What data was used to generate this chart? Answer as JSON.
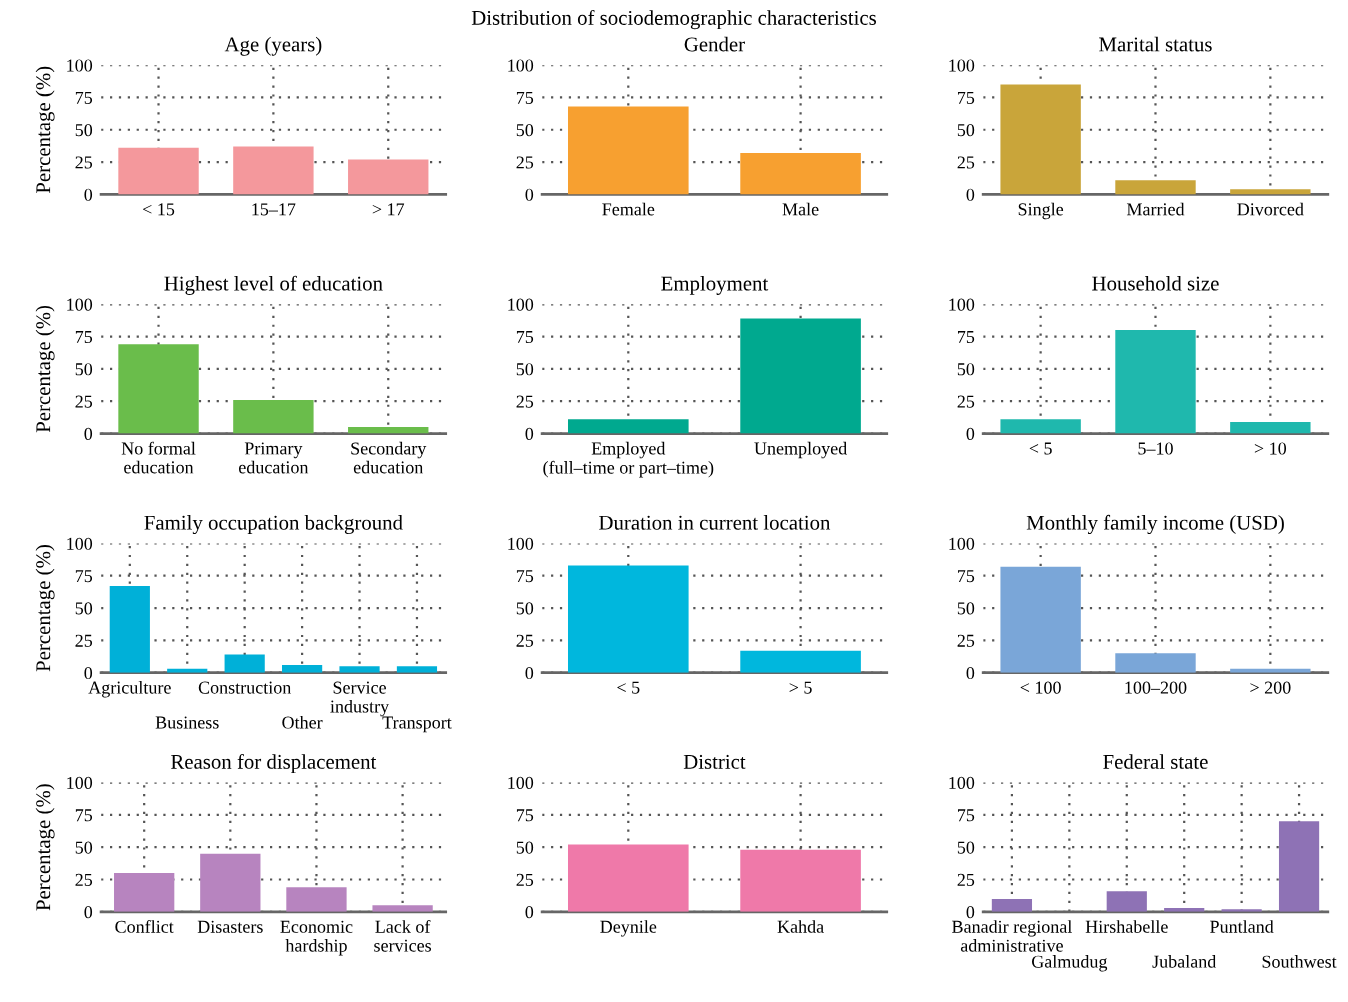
{
  "chart_data": [
    {
      "type": "bar",
      "title": "Age (years)",
      "ylabel": "Percentage (%)",
      "annotations": [
        "Distribution of sociodemographic characteristics"
      ],
      "categories": [
        "< 15",
        "15–17",
        "> 17"
      ],
      "values": [
        36,
        37,
        27
      ],
      "color": "#f4989c",
      "ylim": [
        0,
        100
      ],
      "yticks": [
        0,
        25,
        50,
        75,
        100
      ],
      "grid": true
    },
    {
      "type": "bar",
      "title": "Gender",
      "categories": [
        "Female",
        "Male"
      ],
      "values": [
        68,
        32
      ],
      "color": "#f7a030",
      "ylim": [
        0,
        100
      ],
      "yticks": [
        0,
        25,
        50,
        75,
        100
      ],
      "grid": true
    },
    {
      "type": "bar",
      "title": "Marital status",
      "categories": [
        "Single",
        "Married",
        "Divorced"
      ],
      "values": [
        85,
        11,
        4
      ],
      "color": "#c9a53a",
      "ylim": [
        0,
        100
      ],
      "yticks": [
        0,
        25,
        50,
        75,
        100
      ],
      "grid": true
    },
    {
      "type": "bar",
      "title": "Highest level of education",
      "ylabel": "Percentage (%)",
      "categories": [
        "No formal\neducation",
        "Primary\neducation",
        "Secondary\neducation"
      ],
      "values": [
        69,
        26,
        5
      ],
      "color": "#6abd4b",
      "ylim": [
        0,
        100
      ],
      "yticks": [
        0,
        25,
        50,
        75,
        100
      ],
      "grid": true
    },
    {
      "type": "bar",
      "title": "Employment",
      "categories": [
        "Employed\n(full–time or part–time)",
        "Unemployed"
      ],
      "values": [
        11,
        89
      ],
      "color": "#00a98f",
      "ylim": [
        0,
        100
      ],
      "yticks": [
        0,
        25,
        50,
        75,
        100
      ],
      "grid": true
    },
    {
      "type": "bar",
      "title": "Household size",
      "categories": [
        "< 5",
        "5–10",
        "> 10"
      ],
      "values": [
        11,
        80,
        9
      ],
      "color": "#1fb8ad",
      "ylim": [
        0,
        100
      ],
      "yticks": [
        0,
        25,
        50,
        75,
        100
      ],
      "grid": true
    },
    {
      "type": "bar",
      "title": "Family occupation background",
      "ylabel": "Percentage (%)",
      "categories": [
        "Agriculture",
        "Business",
        "Construction",
        "Other",
        "Service\nindustry",
        "Transport"
      ],
      "values": [
        67,
        3,
        14,
        6,
        5,
        5
      ],
      "color": "#00b0d8",
      "ylim": [
        0,
        100
      ],
      "yticks": [
        0,
        25,
        50,
        75,
        100
      ],
      "grid": true
    },
    {
      "type": "bar",
      "title": "Duration in current location",
      "categories": [
        "< 5",
        "> 5"
      ],
      "values": [
        83,
        17
      ],
      "color": "#00b7dd",
      "ylim": [
        0,
        100
      ],
      "yticks": [
        0,
        25,
        50,
        75,
        100
      ],
      "grid": true
    },
    {
      "type": "bar",
      "title": "Monthly family income (USD)",
      "categories": [
        "< 100",
        "100–200",
        "> 200"
      ],
      "values": [
        82,
        15,
        3
      ],
      "color": "#7aa6d8",
      "ylim": [
        0,
        100
      ],
      "yticks": [
        0,
        25,
        50,
        75,
        100
      ],
      "grid": true
    },
    {
      "type": "bar",
      "title": "Reason for displacement",
      "ylabel": "Percentage (%)",
      "categories": [
        "Conflict",
        "Disasters",
        "Economic\nhardship",
        "Lack of\nservices"
      ],
      "values": [
        30,
        45,
        19,
        5
      ],
      "color": "#b784bf",
      "ylim": [
        0,
        100
      ],
      "yticks": [
        0,
        25,
        50,
        75,
        100
      ],
      "grid": true
    },
    {
      "type": "bar",
      "title": "District",
      "categories": [
        "Deynile",
        "Kahda"
      ],
      "values": [
        52,
        48
      ],
      "color": "#ef79a9",
      "ylim": [
        0,
        100
      ],
      "yticks": [
        0,
        25,
        50,
        75,
        100
      ],
      "grid": true
    },
    {
      "type": "bar",
      "title": "Federal state",
      "categories": [
        "Banadir regional\nadministrative",
        "Galmudug",
        "Hirshabelle",
        "Jubaland",
        "Puntland",
        "Southwest"
      ],
      "values": [
        10,
        0,
        16,
        3,
        2,
        70
      ],
      "color": "#8e72b5",
      "ylim": [
        0,
        100
      ],
      "yticks": [
        0,
        25,
        50,
        75,
        100
      ],
      "grid": true
    }
  ]
}
